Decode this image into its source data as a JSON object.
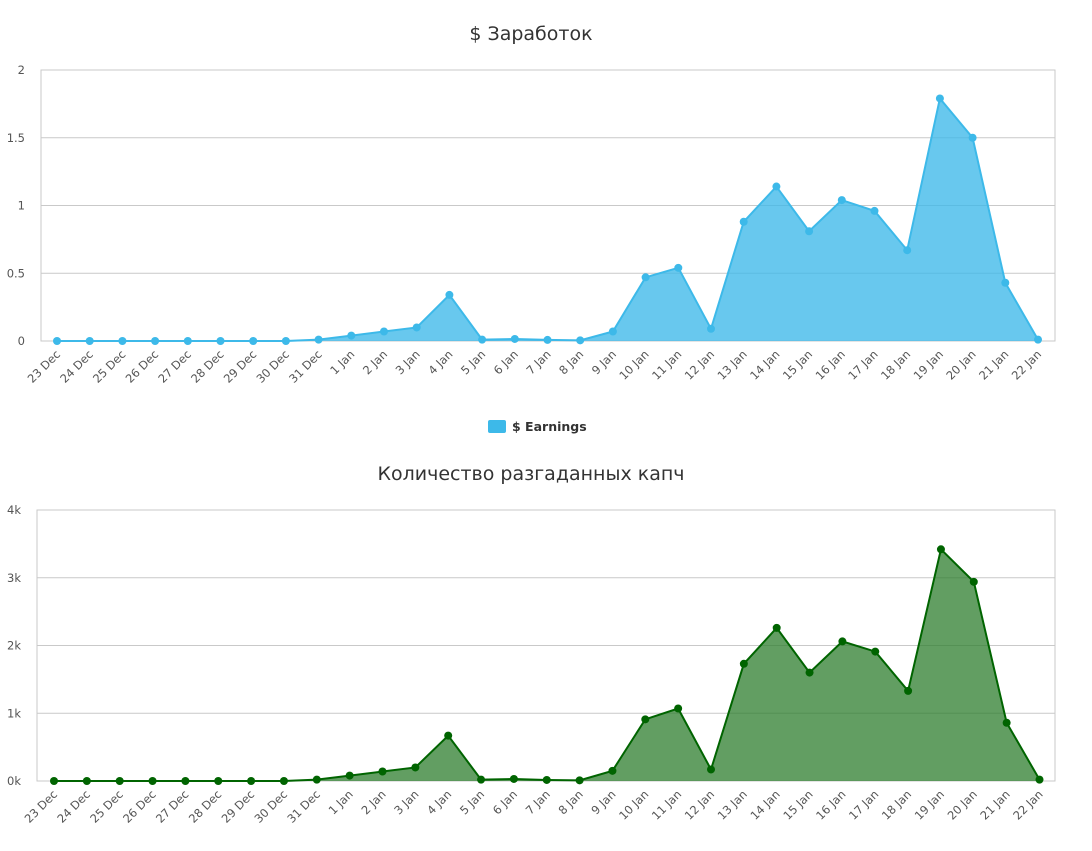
{
  "chart_data": [
    {
      "type": "area",
      "title": "$ Заработок",
      "categories": [
        "23 Dec",
        "24 Dec",
        "25 Dec",
        "26 Dec",
        "27 Dec",
        "28 Dec",
        "29 Dec",
        "30 Dec",
        "31 Dec",
        "1 Jan",
        "2 Jan",
        "3 Jan",
        "4 Jan",
        "5 Jan",
        "6 Jan",
        "7 Jan",
        "8 Jan",
        "9 Jan",
        "10 Jan",
        "11 Jan",
        "12 Jan",
        "13 Jan",
        "14 Jan",
        "15 Jan",
        "16 Jan",
        "17 Jan",
        "18 Jan",
        "19 Jan",
        "20 Jan",
        "21 Jan",
        "22 Jan"
      ],
      "series": [
        {
          "name": "$ Earnings",
          "color": "#3db9e9",
          "values": [
            0,
            0,
            0,
            0,
            0,
            0,
            0,
            0,
            0.01,
            0.04,
            0.07,
            0.1,
            0.34,
            0.01,
            0.015,
            0.008,
            0.005,
            0.07,
            0.47,
            0.54,
            0.09,
            0.88,
            1.14,
            0.81,
            1.04,
            0.96,
            0.67,
            1.79,
            1.5,
            0.43,
            0.01
          ]
        }
      ],
      "yticks": [
        "0",
        "0.5",
        "1",
        "1.5",
        "2"
      ],
      "ylim": [
        0,
        2
      ],
      "grid": true,
      "legend": "bottom-center",
      "xlabel": "",
      "ylabel": ""
    },
    {
      "type": "area",
      "title": "Количество разгаданных капч",
      "categories": [
        "23 Dec",
        "24 Dec",
        "25 Dec",
        "26 Dec",
        "27 Dec",
        "28 Dec",
        "29 Dec",
        "30 Dec",
        "31 Dec",
        "1 Jan",
        "2 Jan",
        "3 Jan",
        "4 Jan",
        "5 Jan",
        "6 Jan",
        "7 Jan",
        "8 Jan",
        "9 Jan",
        "10 Jan",
        "11 Jan",
        "12 Jan",
        "13 Jan",
        "14 Jan",
        "15 Jan",
        "16 Jan",
        "17 Jan",
        "18 Jan",
        "19 Jan",
        "20 Jan",
        "21 Jan",
        "22 Jan"
      ],
      "series": [
        {
          "color": "#006400",
          "fill_color": "#2e7d2e",
          "values": [
            0,
            0,
            0,
            0,
            0,
            0,
            0,
            0,
            20,
            80,
            140,
            200,
            670,
            20,
            30,
            15,
            10,
            150,
            910,
            1070,
            170,
            1730,
            2260,
            1600,
            2060,
            1910,
            1330,
            3420,
            2940,
            860,
            20
          ]
        }
      ],
      "yticks": [
        "0k",
        "1k",
        "2k",
        "3k",
        "4k"
      ],
      "ylim": [
        0,
        4000
      ],
      "grid": true,
      "xlabel": "",
      "ylabel": ""
    }
  ]
}
